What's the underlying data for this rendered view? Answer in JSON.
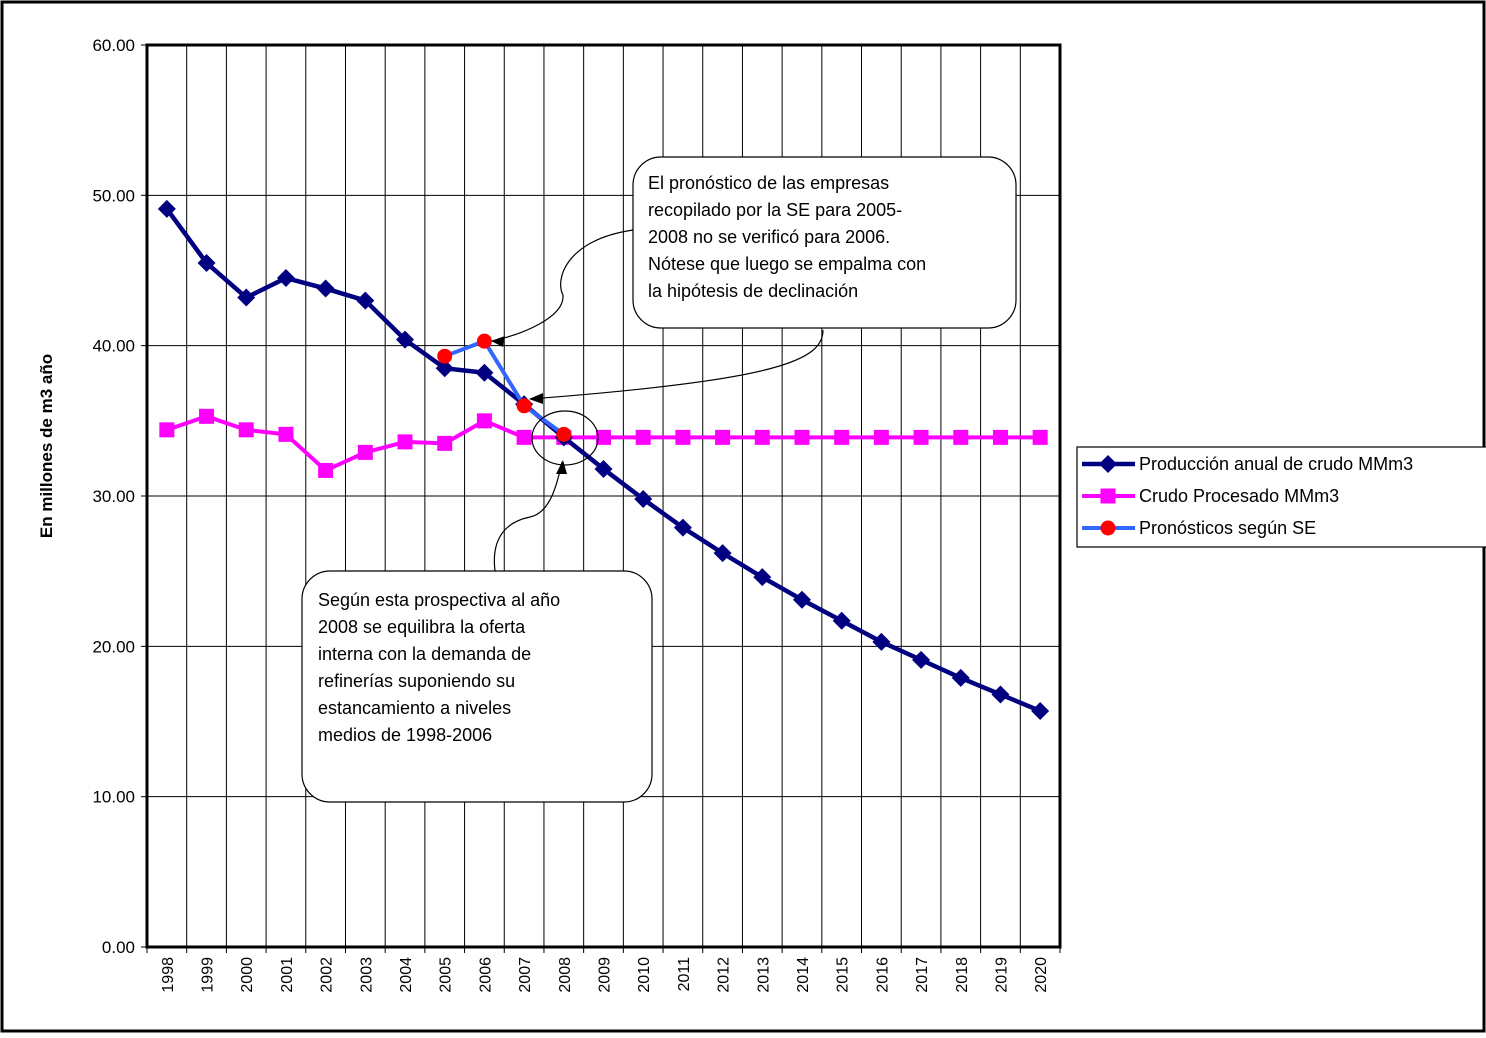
{
  "chart_data": {
    "type": "line",
    "title": "",
    "xlabel": "",
    "ylabel": "En millones de m3 año",
    "ylim": [
      0,
      60
    ],
    "yticks": [
      "0.00",
      "10.00",
      "20.00",
      "30.00",
      "40.00",
      "50.00",
      "60.00"
    ],
    "grid": true,
    "legend_position": "right",
    "categories": [
      "1998",
      "1999",
      "2000",
      "2001",
      "2002",
      "2003",
      "2004",
      "2005",
      "2006",
      "2007",
      "2008",
      "2009",
      "2010",
      "2011",
      "2012",
      "2013",
      "2014",
      "2015",
      "2016",
      "2017",
      "2018",
      "2019",
      "2020"
    ],
    "series": [
      {
        "name": "Producción anual de crudo MMm3",
        "color": "#000080",
        "marker": "diamond",
        "values": [
          49.1,
          45.5,
          43.2,
          44.5,
          43.8,
          43.0,
          40.4,
          38.5,
          38.2,
          36.1,
          33.9,
          31.8,
          29.8,
          27.9,
          26.2,
          24.6,
          23.1,
          21.7,
          20.3,
          19.1,
          17.9,
          16.8,
          15.7
        ]
      },
      {
        "name": "Crudo Procesado MMm3",
        "color": "#ff00ff",
        "marker": "square",
        "values": [
          34.4,
          35.3,
          34.4,
          34.1,
          31.7,
          32.9,
          33.6,
          33.5,
          35.0,
          33.9,
          33.9,
          33.9,
          33.9,
          33.9,
          33.9,
          33.9,
          33.9,
          33.9,
          33.9,
          33.9,
          33.9,
          33.9,
          33.9
        ]
      },
      {
        "name": "Pronósticos según SE",
        "color": "#3366ff",
        "marker": "circle",
        "marker_color": "#ff0000",
        "values": [
          null,
          null,
          null,
          null,
          null,
          null,
          null,
          39.3,
          40.3,
          36.0,
          34.1,
          null,
          null,
          null,
          null,
          null,
          null,
          null,
          null,
          null,
          null,
          null,
          null
        ]
      }
    ],
    "annotations": [
      {
        "id": "annot-forecast",
        "lines": [
          "El pronóstico de las empresas",
          "recopilado por la SE para 2005-",
          "2008 no se verificó para 2006.",
          "Nótese que luego se empalma con",
          "la hipótesis de declinación"
        ]
      },
      {
        "id": "annot-balance",
        "lines": [
          "Según esta prospectiva al año",
          "2008 se equilibra la oferta",
          "interna con la demanda de",
          "refinerías suponiendo su",
          "estancamiento a niveles",
          "medios de 1998-2006"
        ]
      }
    ]
  }
}
